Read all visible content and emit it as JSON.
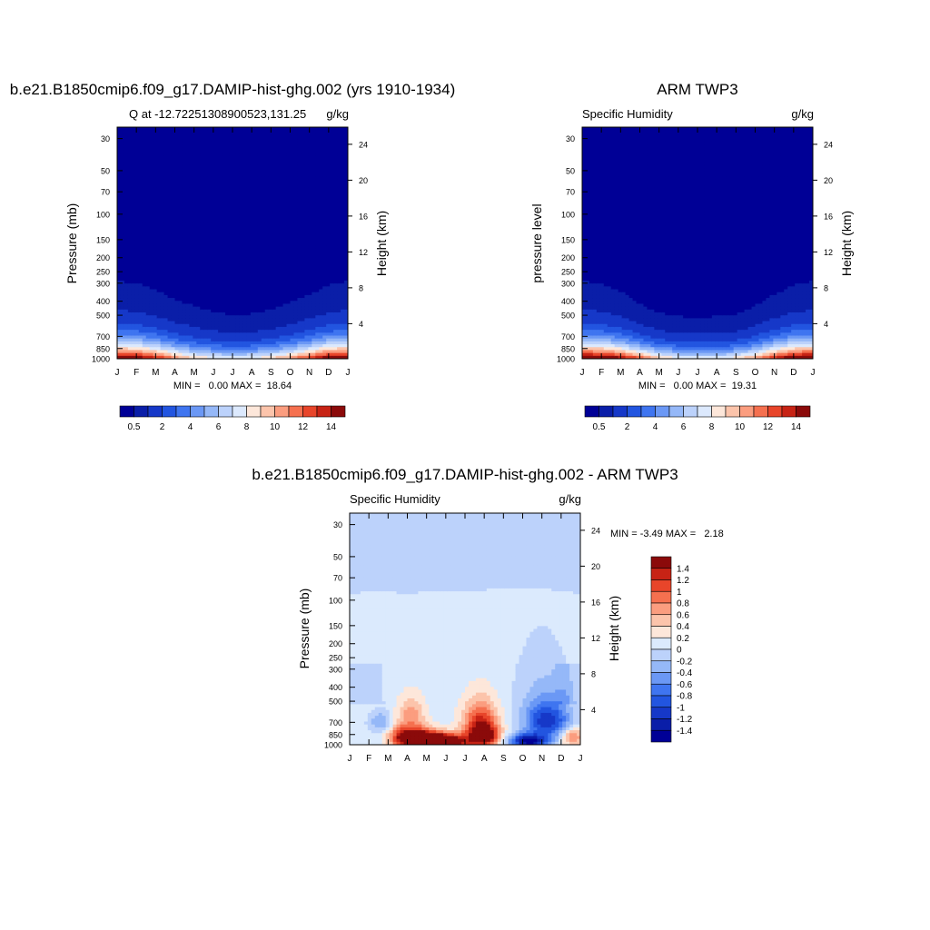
{
  "months": [
    "J",
    "F",
    "M",
    "A",
    "M",
    "J",
    "J",
    "A",
    "S",
    "O",
    "N",
    "D",
    "J"
  ],
  "pressure_ticks": [
    30,
    50,
    70,
    100,
    150,
    200,
    250,
    300,
    400,
    500,
    700,
    850,
    1000
  ],
  "height_ticks": [
    24,
    20,
    16,
    12,
    8,
    4
  ],
  "abs_levels": [
    0.5,
    1,
    2,
    3,
    4,
    5,
    6,
    7,
    8,
    9,
    10,
    11,
    12,
    13,
    14
  ],
  "abs_colors": [
    "#000096",
    "#0a1ea8",
    "#1638c8",
    "#2255e0",
    "#3f75f0",
    "#6b98f5",
    "#95b8f8",
    "#bcd2fb",
    "#dce9fd",
    "#fde7da",
    "#fcc4ab",
    "#fb9d7f",
    "#f5704f",
    "#e8452a",
    "#c72315",
    "#8b0a0a"
  ],
  "abs_colorbar_labels": [
    "0.5",
    "2",
    "4",
    "6",
    "8",
    "10",
    "12",
    "14"
  ],
  "diff_levels": [
    -1.4,
    -1.2,
    -1,
    -0.8,
    -0.6,
    -0.4,
    -0.2,
    0,
    0.2,
    0.4,
    0.6,
    0.8,
    1,
    1.2,
    1.4
  ],
  "diff_colors": [
    "#000096",
    "#0a1ea8",
    "#1638c8",
    "#2255e0",
    "#3f75f0",
    "#6b98f5",
    "#95b8f8",
    "#bcd2fb",
    "#dbeafd",
    "#fde7da",
    "#fcc4ab",
    "#fb9d7f",
    "#f5704f",
    "#e8452a",
    "#c72315",
    "#8b0a0a"
  ],
  "diff_colorbar_labels": [
    "1.4",
    "1.2",
    "1",
    "0.8",
    "0.6",
    "0.4",
    "0.2",
    "0",
    "-0.2",
    "-0.4",
    "-0.6",
    "-0.8",
    "-1",
    "-1.2",
    "-1.4"
  ],
  "chart_data": [
    {
      "type": "heatmap",
      "title": "b.e21.B1850cmip6.f09_g17.DAMIP-hist-ghg.002 (yrs 1910-1934)",
      "subtitle_left": "Q at -12.72251308900523,131.25",
      "subtitle_right": "g/kg",
      "ylabel": "Pressure (mb)",
      "ylabel_right": "Height (km)",
      "stats": "MIN =   0.00 MAX =  18.64",
      "min": 0.0,
      "max": 18.64,
      "ylim": [
        1000,
        30
      ],
      "surface_value": [
        16.5,
        16.0,
        14.0,
        11.5,
        9.5,
        8.5,
        8.0,
        8.5,
        9.5,
        11.0,
        13.5,
        16.0,
        16.5
      ],
      "moist_top_mb": [
        290,
        300,
        330,
        390,
        430,
        470,
        500,
        490,
        460,
        410,
        360,
        310,
        290
      ]
    },
    {
      "type": "heatmap",
      "title": "ARM TWP3",
      "subtitle_left": "Specific Humidity",
      "subtitle_right": "g/kg",
      "ylabel": "pressure level",
      "ylabel_right": "Height (km)",
      "stats": "MIN =   0.00 MAX =  19.31",
      "min": 0.0,
      "max": 19.31,
      "ylim": [
        1000,
        30
      ],
      "surface_value": [
        17.0,
        16.5,
        15.0,
        12.5,
        10.0,
        8.5,
        8.0,
        8.0,
        9.0,
        11.0,
        14.0,
        16.5,
        17.0
      ],
      "moist_top_mb": [
        290,
        300,
        340,
        420,
        480,
        510,
        520,
        510,
        490,
        430,
        360,
        310,
        290
      ]
    },
    {
      "type": "heatmap",
      "title": "b.e21.B1850cmip6.f09_g17.DAMIP-hist-ghg.002 - ARM TWP3",
      "subtitle_left": "Specific Humidity",
      "subtitle_right": "g/kg",
      "ylabel": "Pressure (mb)",
      "ylabel_right": "Height (km)",
      "stats": "MIN = -3.49 MAX =   2.18",
      "min": -3.49,
      "max": 2.18,
      "ylim": [
        1000,
        30
      ],
      "tropopause_mb": [
        90,
        88,
        88,
        90,
        88,
        86,
        86,
        85,
        84,
        82,
        84,
        86,
        90
      ],
      "features": [
        {
          "month": 1.6,
          "p": 700,
          "value": -0.5,
          "width_mo": 0.6,
          "depth_mb": 120
        },
        {
          "month": 2.6,
          "p": 880,
          "value": 0.5,
          "width_mo": 0.6,
          "depth_mb": 160
        },
        {
          "month": 3.2,
          "p": 620,
          "value": 0.6,
          "width_mo": 0.7,
          "depth_mb": 170
        },
        {
          "month": 3.5,
          "p": 900,
          "value": 1.6,
          "width_mo": 1.1,
          "depth_mb": 140
        },
        {
          "month": 4.8,
          "p": 950,
          "value": 2.1,
          "width_mo": 1.3,
          "depth_mb": 110
        },
        {
          "month": 6.8,
          "p": 700,
          "value": 1.1,
          "width_mo": 0.9,
          "depth_mb": 230
        },
        {
          "month": 7.0,
          "p": 880,
          "value": 1.3,
          "width_mo": 0.8,
          "depth_mb": 150
        },
        {
          "month": 9.3,
          "p": 950,
          "value": -1.6,
          "width_mo": 1.0,
          "depth_mb": 110
        },
        {
          "month": 10.3,
          "p": 690,
          "value": -1.2,
          "width_mo": 1.2,
          "depth_mb": 200
        },
        {
          "month": 10.0,
          "p": 400,
          "value": -0.25,
          "width_mo": 1.5,
          "depth_mb": 260
        },
        {
          "month": 11.6,
          "p": 880,
          "value": 0.8,
          "width_mo": 0.6,
          "depth_mb": 130
        }
      ]
    }
  ]
}
